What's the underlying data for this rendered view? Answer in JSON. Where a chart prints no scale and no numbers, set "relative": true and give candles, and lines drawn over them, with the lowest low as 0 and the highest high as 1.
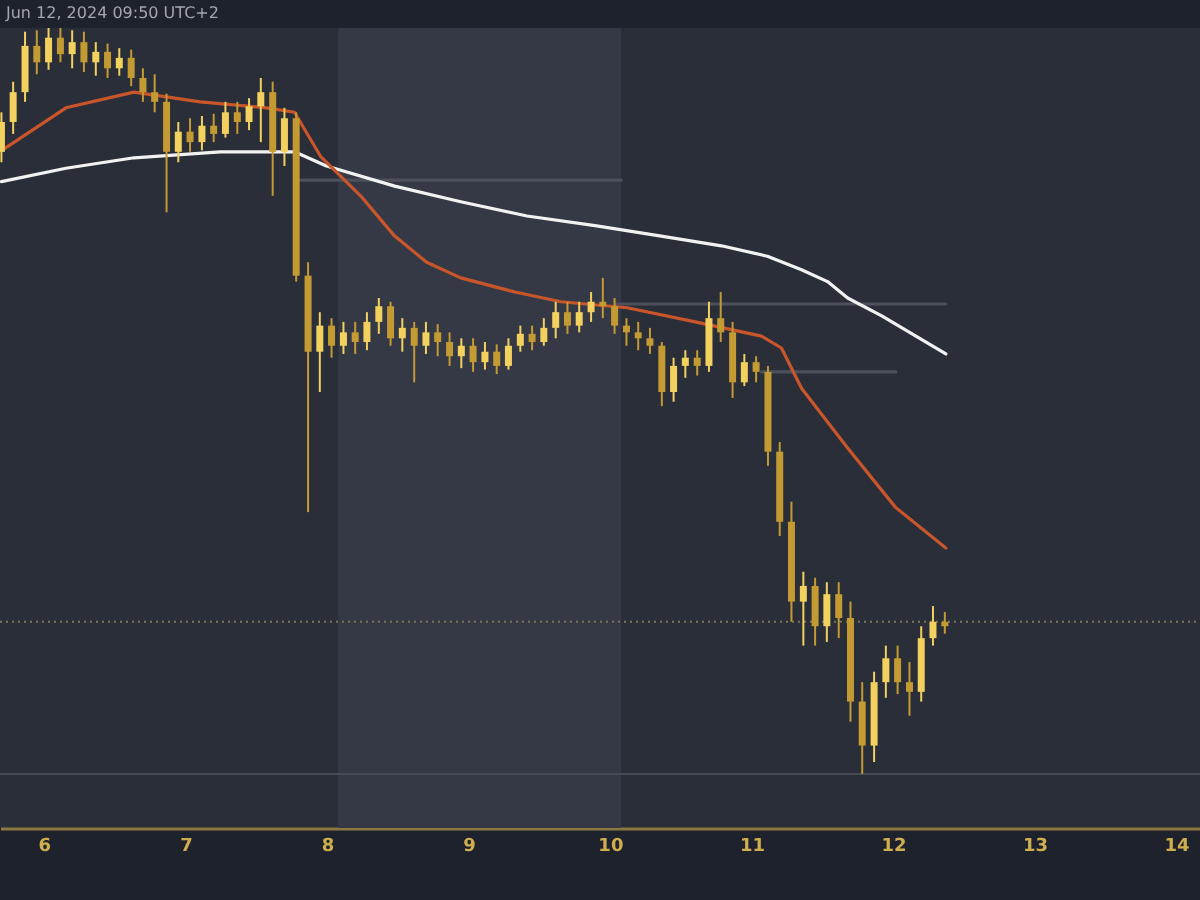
{
  "chart_data": {
    "type": "candlestick",
    "relative": true,
    "annotations": [
      "Jun 12, 2024 09:50 UTC+2"
    ],
    "xlim": [
      5.69,
      14.17
    ],
    "xticks": [
      6,
      7,
      8,
      9,
      10,
      11,
      12,
      13,
      14
    ],
    "tick_labels": "x",
    "bands": [
      {
        "axis": "x",
        "from": 8.08,
        "to": 10.08,
        "color": "#353945"
      }
    ],
    "ref_lines": [
      {
        "axis": "y",
        "value": 0.204,
        "color": "#7a7458",
        "line_style": "dotted"
      },
      {
        "axis": "y",
        "value": 0,
        "color": "#474b56"
      }
    ],
    "series": [
      {
        "type": "line",
        "x": [
          7.813,
          10.079
        ],
        "values": [
          0.796,
          0.796
        ],
        "color": "#4c505b"
      },
      {
        "type": "line",
        "x": [
          10.037,
          12.374
        ],
        "values": [
          0.63,
          0.63
        ],
        "color": "#4c505b"
      },
      {
        "type": "line",
        "x": [
          11.071,
          12.02
        ],
        "values": [
          0.539,
          0.539
        ],
        "color": "#4c505b"
      },
      {
        "type": "line",
        "x": [
          5.7,
          6.156,
          6.637,
          7.246,
          7.771,
          7.997,
          8.479,
          8.946,
          9.414,
          9.895,
          10.363,
          10.788,
          11.113,
          11.354,
          11.538,
          11.68,
          11.921,
          12.374
        ],
        "values": [
          0.794,
          0.812,
          0.826,
          0.834,
          0.834,
          0.815,
          0.788,
          0.767,
          0.748,
          0.735,
          0.721,
          0.708,
          0.694,
          0.676,
          0.66,
          0.638,
          0.614,
          0.563
        ],
        "color": "#f2f2f2"
      },
      {
        "type": "line",
        "x": [
          5.703,
          6.156,
          6.637,
          7.105,
          7.572,
          7.771,
          7.955,
          8.238,
          8.479,
          8.705,
          8.946,
          9.329,
          9.654,
          10.122,
          10.603,
          11.071,
          11.212,
          11.354,
          11.68,
          12.02,
          12.374
        ],
        "values": [
          0.836,
          0.893,
          0.914,
          0.901,
          0.893,
          0.887,
          0.828,
          0.775,
          0.721,
          0.686,
          0.665,
          0.646,
          0.633,
          0.625,
          0.606,
          0.587,
          0.571,
          0.517,
          0.437,
          0.357,
          0.303
        ],
        "color": "#c9552a"
      },
      {
        "colors": [
          "#f2d15f",
          "#f2d15f",
          "#f2d15f",
          "#c49a33",
          "#f2d15f",
          "#c49a33",
          "#f2d15f",
          "#c49a33",
          "#f2d15f",
          "#c49a33",
          "#f2d15f",
          "#c49a33",
          "#c49a33",
          "#c49a33",
          "#c49a33",
          "#f2d15f",
          "#c49a33",
          "#f2d15f",
          "#c49a33",
          "#f2d15f",
          "#c49a33",
          "#f2d15f",
          "#f2d15f",
          "#c49a33",
          "#f2d15f",
          "#c49a33",
          "#c49a33",
          "#f2d15f",
          "#c49a33",
          "#f2d15f",
          "#c49a33",
          "#f2d15f",
          "#f2d15f",
          "#c49a33",
          "#f2d15f",
          "#c49a33",
          "#f2d15f",
          "#c49a33",
          "#c49a33",
          "#f2d15f",
          "#c49a33",
          "#f2d15f",
          "#c49a33",
          "#f2d15f",
          "#f2d15f",
          "#c49a33",
          "#f2d15f",
          "#f2d15f",
          "#c49a33",
          "#f2d15f",
          "#f2d15f",
          "#c49a33",
          "#c49a33",
          "#c49a33",
          "#c49a33",
          "#c49a33",
          "#c49a33",
          "#f2d15f",
          "#f2d15f",
          "#c49a33",
          "#f2d15f",
          "#c49a33",
          "#c49a33",
          "#f2d15f",
          "#c49a33",
          "#c49a33",
          "#c49a33",
          "#c49a33",
          "#f2d15f",
          "#c49a33",
          "#f2d15f",
          "#c49a33",
          "#c49a33",
          "#c49a33",
          "#f2d15f",
          "#f2d15f",
          "#c49a33",
          "#c49a33",
          "#f2d15f",
          "#f2d15f",
          "#c49a33"
        ],
        "x": [
          5.7,
          5.783,
          5.867,
          5.95,
          6.033,
          6.117,
          6.2,
          6.283,
          6.367,
          6.45,
          6.533,
          6.617,
          6.7,
          6.783,
          6.867,
          6.95,
          7.033,
          7.117,
          7.2,
          7.283,
          7.367,
          7.45,
          7.533,
          7.617,
          7.7,
          7.783,
          7.867,
          7.95,
          8.033,
          8.117,
          8.2,
          8.283,
          8.367,
          8.45,
          8.533,
          8.617,
          8.7,
          8.783,
          8.867,
          8.95,
          9.033,
          9.117,
          9.2,
          9.283,
          9.367,
          9.45,
          9.533,
          9.617,
          9.7,
          9.783,
          9.867,
          9.95,
          10.033,
          10.117,
          10.2,
          10.283,
          10.367,
          10.45,
          10.533,
          10.617,
          10.7,
          10.783,
          10.867,
          10.95,
          11.033,
          11.117,
          11.2,
          11.283,
          11.367,
          11.45,
          11.533,
          11.617,
          11.7,
          11.783,
          11.867,
          11.95,
          12.033,
          12.117,
          12.2,
          12.283,
          12.367
        ],
        "ohlc": [
          [
            0.834,
            0.887,
            0.82,
            0.874
          ],
          [
            0.874,
            0.928,
            0.858,
            0.914
          ],
          [
            0.914,
            0.995,
            0.901,
            0.976
          ],
          [
            0.976,
            0.997,
            0.938,
            0.954
          ],
          [
            0.954,
            1.0,
            0.944,
            0.987
          ],
          [
            0.987,
            1.0,
            0.954,
            0.965
          ],
          [
            0.965,
            0.997,
            0.946,
            0.981
          ],
          [
            0.981,
            0.995,
            0.941,
            0.954
          ],
          [
            0.954,
            0.981,
            0.936,
            0.968
          ],
          [
            0.968,
            0.979,
            0.933,
            0.946
          ],
          [
            0.946,
            0.973,
            0.936,
            0.96
          ],
          [
            0.96,
            0.971,
            0.922,
            0.933
          ],
          [
            0.933,
            0.946,
            0.901,
            0.914
          ],
          [
            0.914,
            0.938,
            0.887,
            0.901
          ],
          [
            0.901,
            0.912,
            0.753,
            0.834
          ],
          [
            0.834,
            0.874,
            0.82,
            0.861
          ],
          [
            0.861,
            0.879,
            0.834,
            0.847
          ],
          [
            0.847,
            0.882,
            0.836,
            0.869
          ],
          [
            0.869,
            0.885,
            0.847,
            0.858
          ],
          [
            0.858,
            0.901,
            0.853,
            0.887
          ],
          [
            0.887,
            0.901,
            0.858,
            0.874
          ],
          [
            0.874,
            0.906,
            0.863,
            0.895
          ],
          [
            0.895,
            0.933,
            0.847,
            0.914
          ],
          [
            0.914,
            0.928,
            0.775,
            0.834
          ],
          [
            0.834,
            0.893,
            0.815,
            0.879
          ],
          [
            0.879,
            0.887,
            0.66,
            0.668
          ],
          [
            0.668,
            0.686,
            0.351,
            0.566
          ],
          [
            0.566,
            0.619,
            0.512,
            0.601
          ],
          [
            0.601,
            0.611,
            0.558,
            0.574
          ],
          [
            0.574,
            0.606,
            0.563,
            0.592
          ],
          [
            0.592,
            0.606,
            0.563,
            0.579
          ],
          [
            0.579,
            0.619,
            0.568,
            0.606
          ],
          [
            0.606,
            0.638,
            0.59,
            0.627
          ],
          [
            0.627,
            0.633,
            0.574,
            0.584
          ],
          [
            0.584,
            0.611,
            0.566,
            0.598
          ],
          [
            0.598,
            0.606,
            0.525,
            0.574
          ],
          [
            0.574,
            0.606,
            0.563,
            0.592
          ],
          [
            0.592,
            0.603,
            0.56,
            0.579
          ],
          [
            0.579,
            0.592,
            0.547,
            0.56
          ],
          [
            0.56,
            0.584,
            0.544,
            0.574
          ],
          [
            0.574,
            0.584,
            0.539,
            0.552
          ],
          [
            0.552,
            0.579,
            0.542,
            0.566
          ],
          [
            0.566,
            0.576,
            0.536,
            0.547
          ],
          [
            0.547,
            0.584,
            0.542,
            0.574
          ],
          [
            0.574,
            0.601,
            0.566,
            0.59
          ],
          [
            0.59,
            0.601,
            0.568,
            0.579
          ],
          [
            0.579,
            0.611,
            0.574,
            0.598
          ],
          [
            0.598,
            0.633,
            0.584,
            0.619
          ],
          [
            0.619,
            0.633,
            0.59,
            0.601
          ],
          [
            0.601,
            0.633,
            0.592,
            0.619
          ],
          [
            0.619,
            0.646,
            0.606,
            0.633
          ],
          [
            0.633,
            0.665,
            0.611,
            0.627
          ],
          [
            0.627,
            0.638,
            0.59,
            0.601
          ],
          [
            0.601,
            0.611,
            0.574,
            0.592
          ],
          [
            0.592,
            0.606,
            0.568,
            0.584
          ],
          [
            0.584,
            0.598,
            0.563,
            0.574
          ],
          [
            0.574,
            0.579,
            0.493,
            0.512
          ],
          [
            0.512,
            0.558,
            0.499,
            0.547
          ],
          [
            0.547,
            0.568,
            0.531,
            0.558
          ],
          [
            0.558,
            0.568,
            0.534,
            0.547
          ],
          [
            0.547,
            0.633,
            0.539,
            0.611
          ],
          [
            0.611,
            0.646,
            0.579,
            0.592
          ],
          [
            0.592,
            0.606,
            0.504,
            0.525
          ],
          [
            0.525,
            0.563,
            0.52,
            0.552
          ],
          [
            0.552,
            0.56,
            0.525,
            0.539
          ],
          [
            0.539,
            0.547,
            0.413,
            0.432
          ],
          [
            0.432,
            0.445,
            0.319,
            0.338
          ],
          [
            0.338,
            0.365,
            0.204,
            0.231
          ],
          [
            0.231,
            0.271,
            0.172,
            0.252
          ],
          [
            0.252,
            0.263,
            0.172,
            0.198
          ],
          [
            0.198,
            0.257,
            0.177,
            0.241
          ],
          [
            0.241,
            0.257,
            0.182,
            0.209
          ],
          [
            0.209,
            0.231,
            0.07,
            0.097
          ],
          [
            0.097,
            0.123,
            0.0,
            0.038
          ],
          [
            0.038,
            0.137,
            0.016,
            0.123
          ],
          [
            0.123,
            0.172,
            0.102,
            0.155
          ],
          [
            0.155,
            0.172,
            0.107,
            0.123
          ],
          [
            0.123,
            0.15,
            0.078,
            0.11
          ],
          [
            0.11,
            0.198,
            0.097,
            0.182
          ],
          [
            0.182,
            0.225,
            0.172,
            0.204
          ],
          [
            0.204,
            0.217,
            0.188,
            0.198
          ]
        ]
      }
    ]
  }
}
